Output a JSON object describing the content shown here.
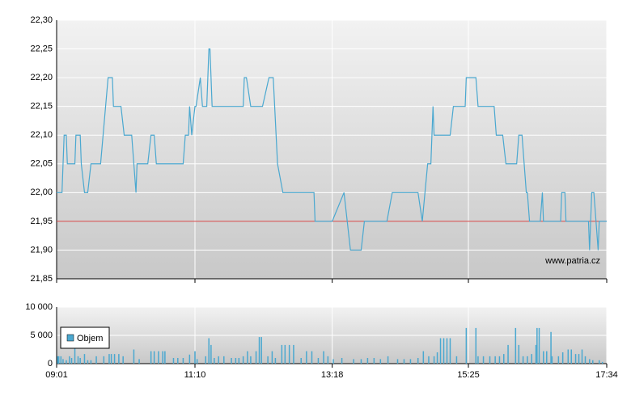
{
  "chart_data": [
    {
      "type": "line",
      "color": "#4aa8d0",
      "grid": true,
      "watermark": "www.patria.cz",
      "reference_line": 21.95,
      "reference_color": "#d04040",
      "x": [
        541,
        546,
        548,
        550,
        551,
        558,
        559,
        563,
        564,
        567,
        570,
        573,
        582,
        589,
        593,
        594,
        601,
        604,
        611,
        613,
        615,
        616,
        626,
        629,
        632,
        634,
        659,
        661,
        664,
        665,
        667,
        670,
        671,
        675,
        677,
        681,
        683,
        684,
        686,
        715,
        716,
        718,
        722,
        733,
        739,
        743,
        747,
        752,
        781,
        782,
        798,
        809,
        815,
        825,
        828,
        849,
        854,
        878,
        882,
        887,
        890,
        892,
        893,
        908,
        911,
        922,
        923,
        932,
        934,
        949,
        951,
        957,
        960,
        970,
        972,
        975,
        979,
        980,
        982,
        992,
        994,
        995,
        1011,
        1012,
        1015,
        1016,
        1037,
        1038,
        1040,
        1042,
        1044,
        1046,
        1047,
        1054
      ],
      "values": [
        22.0,
        22.0,
        22.1,
        22.1,
        22.05,
        22.05,
        22.1,
        22.1,
        22.05,
        22.0,
        22.0,
        22.05,
        22.05,
        22.2,
        22.2,
        22.15,
        22.15,
        22.1,
        22.1,
        22.05,
        22.0,
        22.05,
        22.05,
        22.1,
        22.1,
        22.05,
        22.05,
        22.1,
        22.1,
        22.15,
        22.1,
        22.15,
        22.15,
        22.2,
        22.15,
        22.15,
        22.25,
        22.25,
        22.15,
        22.15,
        22.2,
        22.2,
        22.15,
        22.15,
        22.2,
        22.2,
        22.05,
        22.0,
        22.0,
        21.95,
        21.95,
        22.0,
        21.9,
        21.9,
        21.95,
        21.95,
        22.0,
        22.0,
        21.95,
        22.05,
        22.05,
        22.15,
        22.1,
        22.1,
        22.15,
        22.15,
        22.2,
        22.2,
        22.15,
        22.15,
        22.1,
        22.1,
        22.05,
        22.05,
        22.1,
        22.1,
        22.0,
        22.0,
        21.95,
        21.95,
        22.0,
        21.95,
        21.95,
        22.0,
        22.0,
        21.95,
        21.95,
        21.9,
        22.0,
        22.0,
        21.95,
        21.9,
        21.95,
        21.95
      ],
      "xlim": [
        541,
        1054
      ],
      "xticks": [
        {
          "value": 541,
          "label": "09:01"
        },
        {
          "value": 670,
          "label": "11:10"
        },
        {
          "value": 798,
          "label": "13:18"
        },
        {
          "value": 925,
          "label": "15:25"
        },
        {
          "value": 1054,
          "label": "17:34"
        }
      ],
      "ylim": [
        21.85,
        22.3
      ],
      "yticks": [
        {
          "value": 21.85,
          "label": "21,85"
        },
        {
          "value": 21.9,
          "label": "21,90"
        },
        {
          "value": 21.95,
          "label": "21,95"
        },
        {
          "value": 22.0,
          "label": "22,00"
        },
        {
          "value": 22.05,
          "label": "22,05"
        },
        {
          "value": 22.1,
          "label": "22,10"
        },
        {
          "value": 22.15,
          "label": "22,15"
        },
        {
          "value": 22.2,
          "label": "22,20"
        },
        {
          "value": 22.25,
          "label": "22,25"
        },
        {
          "value": 22.3,
          "label": "22,30"
        }
      ]
    },
    {
      "type": "bar",
      "grid": true,
      "legend": "top-left",
      "x": [
        542,
        543,
        545,
        547,
        550,
        553,
        555,
        558,
        561,
        563,
        567,
        570,
        573,
        578,
        585,
        590,
        592,
        595,
        599,
        603,
        613,
        618,
        629,
        632,
        636,
        640,
        642,
        650,
        654,
        659,
        665,
        670,
        672,
        680,
        683,
        685,
        688,
        692,
        697,
        704,
        708,
        711,
        715,
        719,
        722,
        727,
        730,
        732,
        738,
        742,
        745,
        751,
        754,
        758,
        762,
        769,
        774,
        779,
        785,
        790,
        794,
        799,
        807,
        818,
        825,
        831,
        837,
        843,
        850,
        859,
        865,
        871,
        878,
        883,
        888,
        893,
        896,
        899,
        902,
        905,
        908,
        914,
        923,
        932,
        934,
        939,
        945,
        950,
        954,
        958,
        962,
        969,
        972,
        976,
        980,
        984,
        988,
        989,
        991,
        995,
        998,
        1002,
        1003,
        1009,
        1013,
        1018,
        1021,
        1025,
        1028,
        1031,
        1034,
        1038,
        1041,
        1047,
        1050
      ],
      "series": [
        {
          "name": "Objem",
          "color": "#4aa8d0",
          "values": [
            1300,
            1300,
            1300,
            800,
            600,
            1300,
            1000,
            4500,
            1300,
            1000,
            1700,
            600,
            600,
            1300,
            1300,
            1700,
            1700,
            1700,
            1700,
            1300,
            2500,
            800,
            2200,
            2200,
            2200,
            2200,
            2200,
            1000,
            1000,
            1000,
            1600,
            2200,
            800,
            1300,
            4500,
            3300,
            1000,
            1300,
            1300,
            1000,
            1000,
            1000,
            1300,
            2200,
            1300,
            2200,
            4700,
            4700,
            1300,
            2200,
            1000,
            3300,
            3300,
            3300,
            3300,
            1000,
            2200,
            2200,
            1000,
            2200,
            1300,
            800,
            1000,
            800,
            800,
            1000,
            1000,
            800,
            1300,
            800,
            800,
            800,
            1000,
            2200,
            1300,
            1300,
            2000,
            4500,
            4500,
            4500,
            4500,
            1300,
            6300,
            6300,
            1300,
            1300,
            1300,
            1300,
            1300,
            1700,
            3300,
            6300,
            3300,
            1300,
            1300,
            1700,
            3300,
            6300,
            6300,
            2200,
            2200,
            5600,
            1300,
            1300,
            2000,
            2500,
            2500,
            1700,
            1700,
            2500,
            1300,
            800,
            600,
            600,
            300
          ]
        }
      ],
      "xlim": [
        541,
        1054
      ],
      "xticks": [
        {
          "value": 541,
          "label": "09:01"
        },
        {
          "value": 670,
          "label": "11:10"
        },
        {
          "value": 798,
          "label": "13:18"
        },
        {
          "value": 925,
          "label": "15:25"
        },
        {
          "value": 1054,
          "label": "17:34"
        }
      ],
      "ylim": [
        0,
        10000
      ],
      "yticks": [
        0,
        {
          "value": 5000,
          "label": "5 000"
        },
        {
          "value": 10000,
          "label": "10 000"
        }
      ]
    }
  ]
}
